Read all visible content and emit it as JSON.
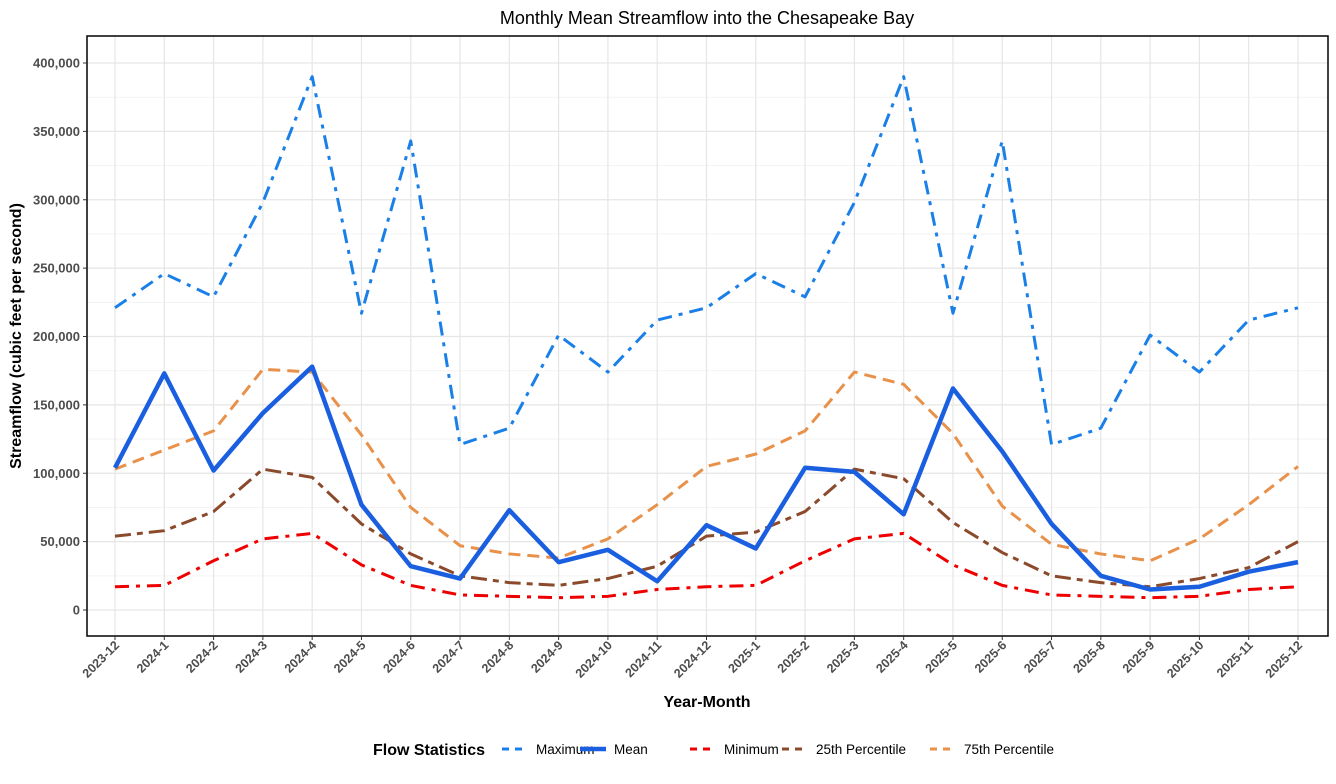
{
  "chart_data": {
    "type": "line",
    "title": "Monthly Mean Streamflow into the Chesapeake Bay",
    "xlabel": "Year-Month",
    "ylabel": "Streamflow (cubic feet per second)",
    "ylim": [
      -20000,
      420000
    ],
    "yticks": [
      0,
      50000,
      100000,
      150000,
      200000,
      250000,
      300000,
      350000,
      400000
    ],
    "ytick_labels": [
      "0",
      "50,000",
      "100,000",
      "150,000",
      "200,000",
      "250,000",
      "300,000",
      "350,000",
      "400,000"
    ],
    "grid": true,
    "legend": {
      "title": "Flow Statistics",
      "placement": "bottom"
    },
    "categories": [
      "2023-12",
      "2024-1",
      "2024-2",
      "2024-3",
      "2024-4",
      "2024-5",
      "2024-6",
      "2024-7",
      "2024-8",
      "2024-9",
      "2024-10",
      "2024-11",
      "2024-12",
      "2025-1",
      "2025-2",
      "2025-3",
      "2025-4",
      "2025-5",
      "2025-6",
      "2025-7",
      "2025-8",
      "2025-9",
      "2025-10",
      "2025-11",
      "2025-12"
    ],
    "series": [
      {
        "name": "Maximum",
        "color": "#1a80e8",
        "style": "dashdot",
        "values": [
          221000,
          246000,
          229000,
          298000,
          390000,
          217000,
          343000,
          121000,
          133000,
          201000,
          174000,
          212000,
          221000,
          246000,
          229000,
          298000,
          390000,
          217000,
          343000,
          121000,
          133000,
          201000,
          174000,
          212000,
          221000
        ]
      },
      {
        "name": "Mean",
        "color": "#1a5fe0",
        "style": "solid",
        "values": [
          104000,
          173000,
          102000,
          144000,
          178000,
          77000,
          32000,
          23000,
          73000,
          35000,
          44000,
          21000,
          62000,
          45000,
          104000,
          101000,
          70000,
          162000,
          116000,
          63000,
          25000,
          15000,
          17000,
          28000,
          35000
        ]
      },
      {
        "name": "Minimum",
        "color": "#ee0000",
        "style": "dashdot",
        "values": [
          17000,
          18000,
          36000,
          52000,
          56000,
          33000,
          18000,
          11000,
          10000,
          9000,
          10000,
          15000,
          17000,
          18000,
          36000,
          52000,
          56000,
          33000,
          18000,
          11000,
          10000,
          9000,
          10000,
          15000,
          17000
        ]
      },
      {
        "name": "25th Percentile",
        "color": "#8b4a2b",
        "style": "longdash",
        "values": [
          54000,
          58000,
          72000,
          103000,
          97000,
          63000,
          41000,
          25000,
          20000,
          18000,
          23000,
          32000,
          54000,
          57000,
          72000,
          103000,
          96000,
          64000,
          42000,
          25000,
          20000,
          17000,
          23000,
          31000,
          50000
        ]
      },
      {
        "name": "75th Percentile",
        "color": "#e8914a",
        "style": "dashed",
        "values": [
          103000,
          117000,
          131000,
          176000,
          174000,
          128000,
          75000,
          47000,
          41000,
          38000,
          52000,
          77000,
          105000,
          114000,
          131000,
          174000,
          165000,
          129000,
          76000,
          48000,
          41000,
          36000,
          52000,
          77000,
          105000
        ]
      }
    ]
  }
}
